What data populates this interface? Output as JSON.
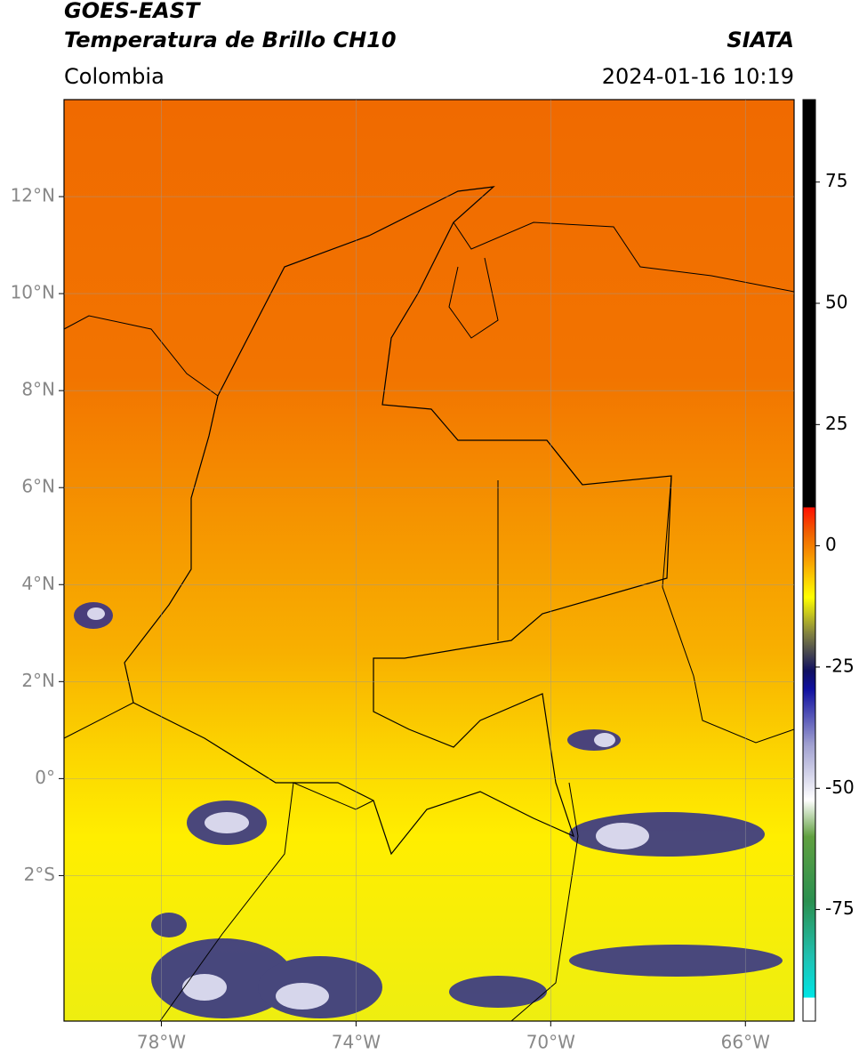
{
  "header": {
    "satellite": "GOES-EAST",
    "product": "Temperatura de Brillo CH10",
    "region": "Colombia",
    "source": "SIATA",
    "datetime": "2024-01-16 10:19"
  },
  "map": {
    "xlim": [
      -80,
      -65
    ],
    "ylim": [
      -5,
      14
    ],
    "grid": true,
    "xticks": [
      {
        "value": -78,
        "label": "78°W"
      },
      {
        "value": -74,
        "label": "74°W"
      },
      {
        "value": -70,
        "label": "70°W"
      },
      {
        "value": -66,
        "label": "66°W"
      }
    ],
    "yticks": [
      {
        "value": -2,
        "label": "2°S"
      },
      {
        "value": 0,
        "label": "0°"
      },
      {
        "value": 2,
        "label": "2°N"
      },
      {
        "value": 4,
        "label": "4°N"
      },
      {
        "value": 6,
        "label": "6°N"
      },
      {
        "value": 8,
        "label": "8°N"
      },
      {
        "value": 10,
        "label": "10°N"
      },
      {
        "value": 12,
        "label": "12°N"
      }
    ]
  },
  "colorbar": {
    "lim": [
      -98,
      92
    ],
    "ticks": [
      -75,
      -50,
      -25,
      0,
      25,
      50,
      75
    ]
  }
}
